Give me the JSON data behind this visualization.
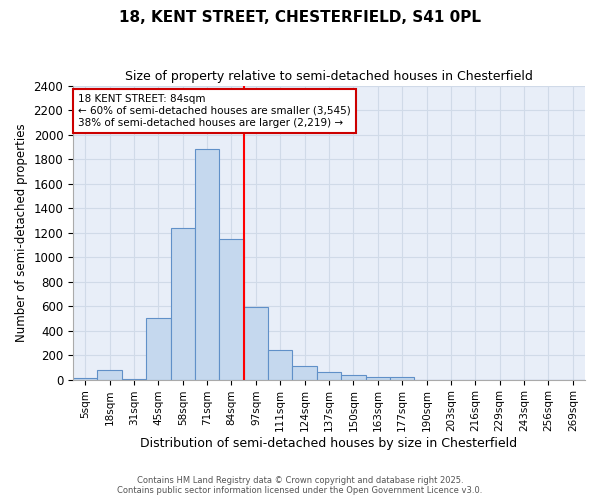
{
  "title": "18, KENT STREET, CHESTERFIELD, S41 0PL",
  "subtitle": "Size of property relative to semi-detached houses in Chesterfield",
  "xlabel": "Distribution of semi-detached houses by size in Chesterfield",
  "ylabel": "Number of semi-detached properties",
  "footer_line1": "Contains HM Land Registry data © Crown copyright and database right 2025.",
  "footer_line2": "Contains public sector information licensed under the Open Government Licence v3.0.",
  "categories": [
    "5sqm",
    "18sqm",
    "31sqm",
    "45sqm",
    "58sqm",
    "71sqm",
    "84sqm",
    "97sqm",
    "111sqm",
    "124sqm",
    "137sqm",
    "150sqm",
    "163sqm",
    "177sqm",
    "190sqm",
    "203sqm",
    "216sqm",
    "229sqm",
    "243sqm",
    "256sqm",
    "269sqm"
  ],
  "values": [
    15,
    75,
    5,
    500,
    1240,
    1880,
    1145,
    590,
    243,
    108,
    60,
    38,
    22,
    18,
    0,
    0,
    0,
    0,
    0,
    0,
    0
  ],
  "bar_color": "#c5d8ee",
  "bar_edge_color": "#6090c8",
  "grid_color": "#d0dae8",
  "bg_color": "#e8eef8",
  "property_line_label": "18 KENT STREET: 84sqm",
  "annotation_smaller": "← 60% of semi-detached houses are smaller (3,545)",
  "annotation_larger": "38% of semi-detached houses are larger (2,219) →",
  "annotation_box_color": "#ffffff",
  "annotation_box_edge": "#cc0000",
  "ylim": [
    0,
    2400
  ],
  "yticks": [
    0,
    200,
    400,
    600,
    800,
    1000,
    1200,
    1400,
    1600,
    1800,
    2000,
    2200,
    2400
  ]
}
